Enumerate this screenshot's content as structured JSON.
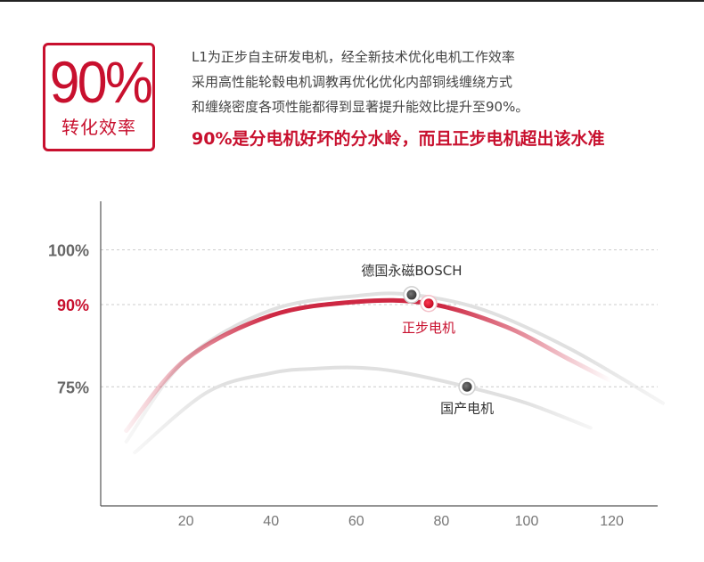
{
  "badge": {
    "value": "90%",
    "caption": "转化效率"
  },
  "description": {
    "lines": [
      "L1为正步自主研发电机，经全新技术优化电机工作效率",
      "采用高性能轮毂电机调教再优化优化内部铜线缠绕方式",
      "和缠绕密度各项性能都得到显著提升能效比提升至90%。"
    ],
    "highlight": "90%是分电机好坏的分水岭，而且正步电机超出该水准"
  },
  "colors": {
    "accent": "#c8102e",
    "grid": "#cccccc",
    "curve_gray": "#e3e3e3",
    "axis": "#555555"
  },
  "chart_data": {
    "type": "line",
    "title": "",
    "xlabel": "",
    "ylabel": "",
    "xlim": [
      0,
      132
    ],
    "ylim": [
      60,
      110
    ],
    "x_ticks": [
      20,
      40,
      60,
      80,
      100,
      120
    ],
    "x_tick_labels": [
      "20",
      "40",
      "60",
      "80",
      "100",
      "120"
    ],
    "y_ticks": [
      {
        "value": 100,
        "label": "100%",
        "highlight": false
      },
      {
        "value": 90,
        "label": "90%",
        "highlight": true
      },
      {
        "value": 75,
        "label": "75%",
        "highlight": false
      }
    ],
    "grid": true,
    "series": [
      {
        "name": "德国永磁BOSCH",
        "color": "#dedede",
        "x": [
          6,
          20,
          40,
          60,
          73,
          90,
          110,
          132
        ],
        "y": [
          65,
          80,
          89,
          91.6,
          91.8,
          89,
          82,
          72
        ],
        "marker": {
          "x": 73,
          "y": 91.8
        }
      },
      {
        "name": "正步电机",
        "color": "#c8102e",
        "x": [
          6,
          20,
          40,
          60,
          77,
          95,
          110,
          120
        ],
        "y": [
          67,
          80,
          88,
          90.5,
          90.2,
          86,
          80,
          76
        ],
        "marker": {
          "x": 77,
          "y": 90.2
        }
      },
      {
        "name": "国产电机",
        "color": "#dedede",
        "x": [
          8,
          25,
          40,
          50,
          60,
          70,
          86,
          100,
          115
        ],
        "y": [
          63,
          74,
          77.5,
          78.3,
          78.5,
          77.7,
          75,
          72,
          67.5
        ],
        "marker": {
          "x": 86,
          "y": 75
        }
      }
    ]
  }
}
